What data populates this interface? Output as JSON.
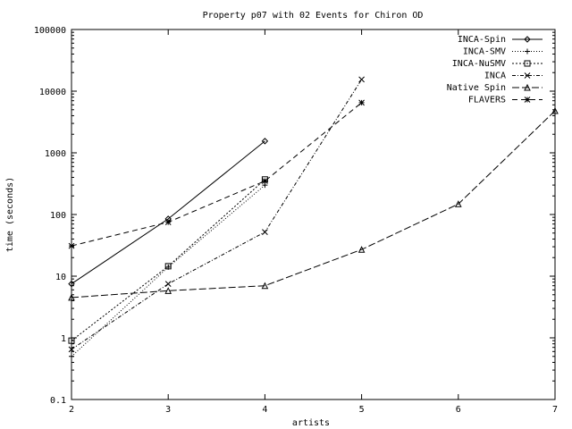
{
  "chart_data": {
    "type": "line",
    "title": "Property p07 with 02 Events for Chiron OD",
    "xlabel": "artists",
    "ylabel": "time (seconds)",
    "xlim": [
      2,
      7
    ],
    "ylim": [
      0.1,
      100000
    ],
    "yscale": "log",
    "grid": false,
    "legend_position": "top-right",
    "x_ticks": [
      "2",
      "3",
      "4",
      "5",
      "6",
      "7"
    ],
    "y_ticks": [
      "0.1",
      "1",
      "10",
      "100",
      "1000",
      "10000",
      "100000"
    ],
    "series": [
      {
        "name": "INCA-Spin",
        "dash": "",
        "marker": "diamond",
        "x": [
          2,
          3,
          4
        ],
        "values": [
          7.5,
          85,
          1550
        ]
      },
      {
        "name": "INCA-SMV",
        "dash": "1,2",
        "marker": "plus",
        "x": [
          2,
          3,
          4
        ],
        "values": [
          0.5,
          14,
          300
        ]
      },
      {
        "name": "INCA-NuSMV",
        "dash": "2,2",
        "marker": "square",
        "x": [
          2,
          3,
          4
        ],
        "values": [
          0.9,
          14.5,
          370
        ]
      },
      {
        "name": "INCA",
        "dash": "4,2,1,2",
        "marker": "x",
        "x": [
          2,
          3,
          4,
          5
        ],
        "values": [
          0.65,
          7.5,
          52,
          15500
        ]
      },
      {
        "name": "Native Spin",
        "dash": "8,3",
        "marker": "triangle",
        "x": [
          2,
          3,
          4,
          5,
          6,
          7
        ],
        "values": [
          4.5,
          5.8,
          7,
          27,
          148,
          4800
        ]
      },
      {
        "name": "FLAVERS",
        "dash": "6,4",
        "marker": "star",
        "x": [
          2,
          3,
          4,
          5
        ],
        "values": [
          31,
          75,
          350,
          6500
        ]
      }
    ]
  }
}
